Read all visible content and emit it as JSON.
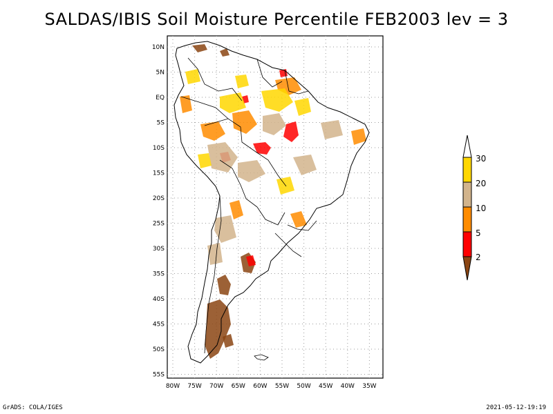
{
  "title": "SALDAS/IBIS Soil Moisture Percentile FEB2003 lev = 3",
  "footer": {
    "credit": "GrADS: COLA/IGES",
    "timestamp": "2021-05-12-19:19"
  },
  "map": {
    "lon_labels": [
      "80W",
      "75W",
      "70W",
      "65W",
      "60W",
      "55W",
      "50W",
      "45W",
      "40W",
      "35W"
    ],
    "lat_labels": [
      "10N",
      "5N",
      "EQ",
      "5S",
      "10S",
      "15S",
      "20S",
      "25S",
      "30S",
      "35S",
      "40S",
      "45S",
      "50S",
      "55S"
    ],
    "lon_range": [
      -81,
      -32
    ],
    "lat_range": [
      -56,
      12
    ],
    "grid": "dotted"
  },
  "colorbar": {
    "labels": [
      "2",
      "5",
      "10",
      "20",
      "30"
    ],
    "colors": {
      "below_2": "#8b4513",
      "2_5": "#ff0000",
      "5_10": "#ff8c00",
      "10_20": "#d2b48c",
      "20_30": "#ffd700",
      "above_30": "#ffffff"
    }
  }
}
